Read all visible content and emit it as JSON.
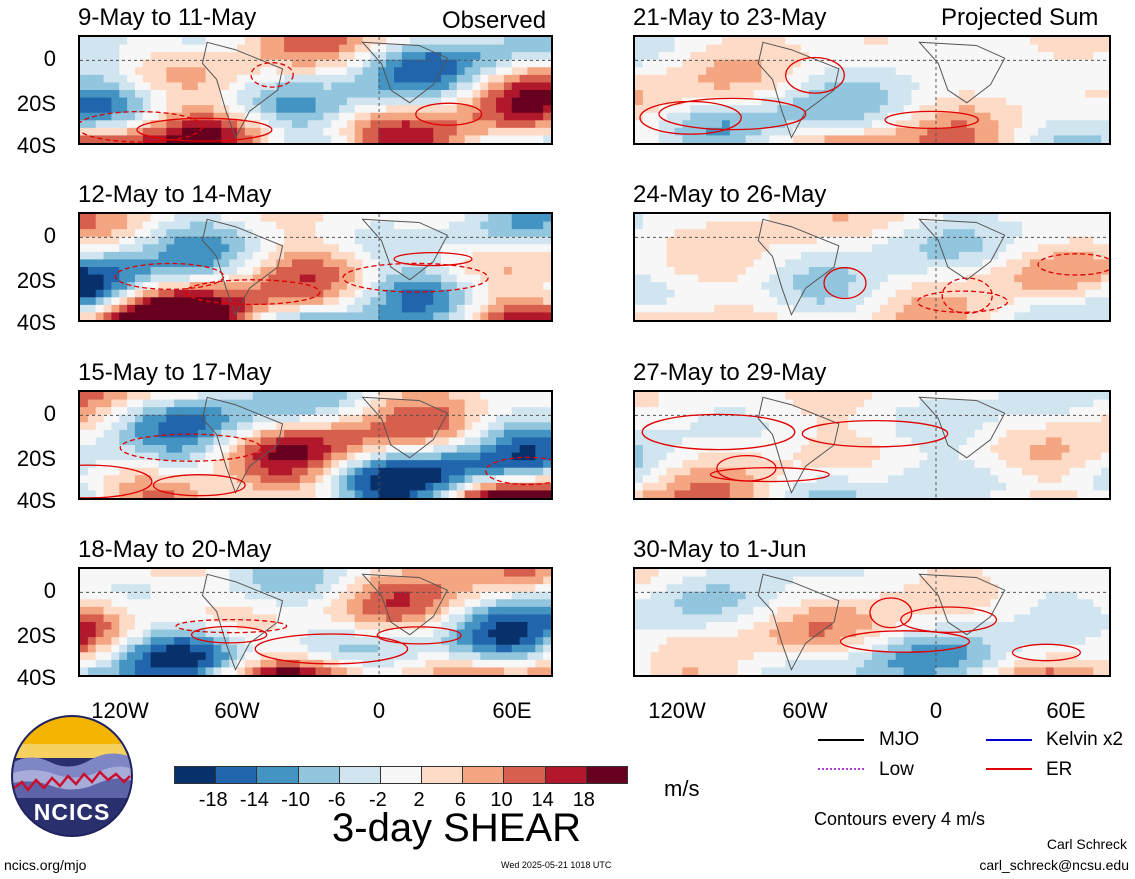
{
  "header": {
    "left_label": "Observed",
    "right_label": "Projected Sum"
  },
  "chart_data": {
    "type": "heatmap",
    "title": "3-day SHEAR",
    "units": "m/s",
    "ylabels": [
      "0",
      "20S",
      "40S"
    ],
    "xlabels": [
      "120W",
      "60W",
      "0",
      "60E"
    ],
    "panels_left": [
      "9-May to 11-May",
      "12-May to 14-May",
      "15-May to 17-May",
      "18-May to 20-May"
    ],
    "panels_right": [
      "21-May to 23-May",
      "24-May to 26-May",
      "27-May to 29-May",
      "30-May to 1-Jun"
    ],
    "colorbar": {
      "ticks": [
        "-18",
        "-14",
        "-10",
        "-6",
        "-2",
        "2",
        "6",
        "10",
        "14",
        "18"
      ],
      "colors": [
        "#08306b",
        "#2166ac",
        "#4393c3",
        "#92c5de",
        "#d1e5f0",
        "#f7f7f7",
        "#fddbc7",
        "#f4a582",
        "#d6604d",
        "#b2182b",
        "#67001f"
      ]
    },
    "legend": [
      {
        "label": "MJO",
        "color": "#000000",
        "style": "solid"
      },
      {
        "label": "Kelvin x2",
        "color": "#0000cc",
        "style": "solid"
      },
      {
        "label": "Low",
        "color": "#b040d0",
        "style": "dotted"
      },
      {
        "label": "ER",
        "color": "#e00000",
        "style": "solid"
      }
    ],
    "contour_note": "Contours every 4 m/s"
  },
  "footer": {
    "logo_text": "NCICS",
    "site": "ncics.org/mjo",
    "timestamp": "Wed 2025-05-21 1018 UTC",
    "author": "Carl Schreck",
    "email": "carl_schreck@ncsu.edu"
  }
}
